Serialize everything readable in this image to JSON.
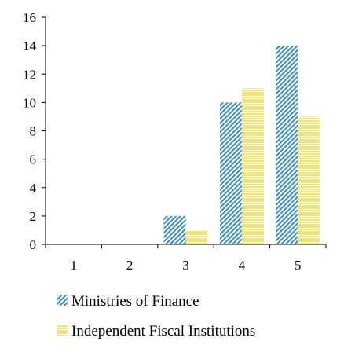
{
  "chart_data": {
    "type": "bar",
    "categories": [
      "1",
      "2",
      "3",
      "4",
      "5"
    ],
    "series": [
      {
        "name": "Ministries of Finance",
        "values": [
          0,
          0,
          2,
          10,
          14
        ],
        "color": "#3a8fc9"
      },
      {
        "name": "Independent Fiscal Institutions",
        "values": [
          0,
          0,
          1,
          11,
          9
        ],
        "color": "#f2e36a"
      }
    ],
    "ylim": [
      0,
      16
    ],
    "yticks": [
      0,
      2,
      4,
      6,
      8,
      10,
      12,
      14,
      16
    ],
    "grid": false,
    "legend_position": "bottom",
    "title": "",
    "xlabel": "",
    "ylabel": ""
  }
}
